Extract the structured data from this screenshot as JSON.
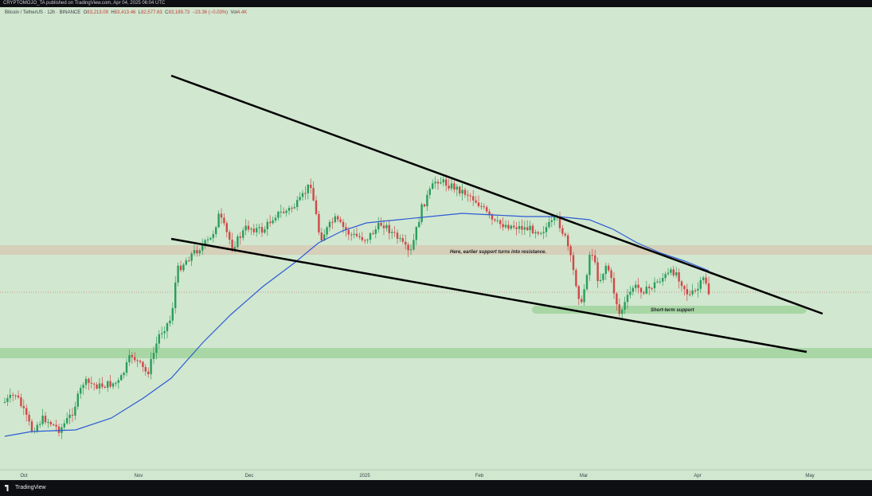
{
  "publish_line": "CRYPTOMOJO_TA published on TradingView.com, Apr 04, 2025 06:04 UTC",
  "header": {
    "symbol": "Bitcoin / TetherUS · 12h · BINANCE",
    "o_label": "O",
    "o_val": "83,213.09",
    "h_label": "H",
    "h_val": "83,413.46",
    "l_label": "L",
    "l_val": "82,577.63",
    "c_label": "C",
    "c_val": "83,189.73",
    "chg": "−23.36 (−0.03%)",
    "vol_label": "Vol",
    "vol_val": "4.4K"
  },
  "footer": {
    "brand": "TradingView"
  },
  "annotations": {
    "resistance_note": "Here, earlier support turns into resistance.",
    "support_note": "Short-term support"
  },
  "chart_data": {
    "type": "candlestick",
    "symbol": "Bitcoin / TetherUS",
    "interval": "12h",
    "exchange": "BINANCE",
    "x_ticks": [
      "Oct",
      "Nov",
      "Dec",
      "2025",
      "Feb",
      "Mar",
      "Apr",
      "May"
    ],
    "moving_average_color": "#2d5bd6",
    "wedge_line_color": "#000000",
    "zone_colors": {
      "resistance_zone": "#d6cfb9",
      "support_zone": "#a9d6a5"
    },
    "background": "#d1e7cf",
    "up_color": "#2a9d5c",
    "down_color": "#d04848"
  }
}
